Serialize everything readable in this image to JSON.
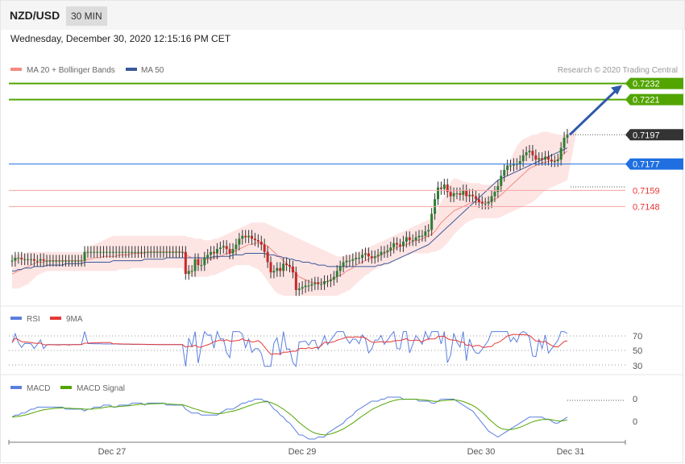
{
  "header": {
    "symbol": "NZD/USD",
    "timeframe": "30 MIN"
  },
  "datetime": "Wednesday, December 30, 2020 12:15:16 PM CET",
  "copyright": "Research © 2020 Trading Central",
  "colors": {
    "green": "#52a500",
    "blue": "#1f6fe0",
    "red": "#e33",
    "up": "#2e7d32",
    "down": "#c62828",
    "arrow": "#2f5aa8"
  },
  "chart_data": [
    {
      "type": "candlestick",
      "legend": [
        {
          "name": "MA 20 + Bollinger Bands",
          "color": "#f28b82"
        },
        {
          "name": "MA 50",
          "color": "#3b5998"
        }
      ],
      "levels": [
        {
          "value": 0.7232,
          "label": "0.7232",
          "style": "green-badge"
        },
        {
          "value": 0.7221,
          "label": "0.7221",
          "style": "green-badge"
        },
        {
          "value": 0.7197,
          "label": "0.7197",
          "style": "dark-badge"
        },
        {
          "value": 0.7177,
          "label": "0.7177",
          "style": "blue-badge"
        },
        {
          "value": 0.7159,
          "label": "0.7159",
          "style": "red-text"
        },
        {
          "value": 0.7148,
          "label": "0.7148",
          "style": "red-text"
        }
      ],
      "price_series": [
        0.7111,
        0.7113,
        0.7113,
        0.7112,
        0.7112,
        0.7112,
        0.7112,
        0.7111,
        0.7111,
        0.7112,
        0.7111,
        0.7111,
        0.7111,
        0.7111,
        0.7111,
        0.7111,
        0.7111,
        0.7111,
        0.7111,
        0.7111,
        0.7111,
        0.7111,
        0.7111,
        0.7117,
        0.7117,
        0.7117,
        0.7117,
        0.7117,
        0.7117,
        0.7117,
        0.7117,
        0.7117,
        0.7117,
        0.7117,
        0.7117,
        0.7117,
        0.7117,
        0.7117,
        0.7117,
        0.7117,
        0.7117,
        0.7117,
        0.7117,
        0.7117,
        0.7117,
        0.7117,
        0.7117,
        0.7117,
        0.7117,
        0.7117,
        0.7117,
        0.7117,
        0.7117,
        0.7117,
        0.7117,
        0.7102,
        0.7104,
        0.7104,
        0.7112,
        0.7108,
        0.7108,
        0.7113,
        0.7115,
        0.7117,
        0.7116,
        0.7119,
        0.712,
        0.7121,
        0.7119,
        0.7116,
        0.7119,
        0.7122,
        0.7126,
        0.7128,
        0.7127,
        0.7128,
        0.7126,
        0.7125,
        0.7124,
        0.7122,
        0.7117,
        0.711,
        0.7103,
        0.7104,
        0.7106,
        0.7104,
        0.7109,
        0.7108,
        0.7107,
        0.7103,
        0.7091,
        0.7092,
        0.7093,
        0.7094,
        0.7094,
        0.7095,
        0.7096,
        0.7095,
        0.7095,
        0.7097,
        0.7097,
        0.7098,
        0.71,
        0.7104,
        0.7107,
        0.711,
        0.7111,
        0.7111,
        0.7112,
        0.7113,
        0.7113,
        0.7115,
        0.7116,
        0.7114,
        0.7113,
        0.7114,
        0.7115,
        0.7117,
        0.7117,
        0.7118,
        0.712,
        0.7123,
        0.7122,
        0.7121,
        0.7124,
        0.7127,
        0.7125,
        0.7125,
        0.7127,
        0.7128,
        0.7128,
        0.7131,
        0.7132,
        0.7143,
        0.7153,
        0.7161,
        0.716,
        0.7163,
        0.7158,
        0.7155,
        0.7157,
        0.7157,
        0.7156,
        0.7159,
        0.7155,
        0.7156,
        0.7155,
        0.7153,
        0.7151,
        0.715,
        0.715,
        0.7151,
        0.7155,
        0.7158,
        0.7162,
        0.7169,
        0.7173,
        0.7176,
        0.7176,
        0.7177,
        0.7177,
        0.7179,
        0.7183,
        0.7185,
        0.7186,
        0.7183,
        0.718,
        0.7181,
        0.718,
        0.7182,
        0.718,
        0.7179,
        0.7179,
        0.718,
        0.7188,
        0.7195,
        0.7197
      ],
      "ma20": [
        0.7102,
        0.7103,
        0.7104,
        0.7105,
        0.7106,
        0.7107,
        0.7108,
        0.7109,
        0.711,
        0.711,
        0.711,
        0.7111,
        0.7111,
        0.7111,
        0.7111,
        0.7111,
        0.7111,
        0.7111,
        0.7111,
        0.7111,
        0.7111,
        0.7111,
        0.7111,
        0.7111,
        0.7112,
        0.7112,
        0.7113,
        0.7113,
        0.7113,
        0.7114,
        0.7114,
        0.7114,
        0.7114,
        0.7114,
        0.7115,
        0.7115,
        0.7115,
        0.7115,
        0.7116,
        0.7116,
        0.7116,
        0.7116,
        0.7116,
        0.7117,
        0.7117,
        0.7117,
        0.7117,
        0.7117,
        0.7117,
        0.7117,
        0.7117,
        0.7117,
        0.7117,
        0.7117,
        0.7117,
        0.7115,
        0.7114,
        0.7113,
        0.7113,
        0.7113,
        0.7112,
        0.7112,
        0.7112,
        0.7112,
        0.7113,
        0.7113,
        0.7114,
        0.7115,
        0.7116,
        0.7116,
        0.7117,
        0.7118,
        0.7119,
        0.712,
        0.7121,
        0.7122,
        0.7122,
        0.7123,
        0.7123,
        0.7123,
        0.7122,
        0.7121,
        0.7119,
        0.7117,
        0.7115,
        0.7113,
        0.7111,
        0.7109,
        0.7107,
        0.7105,
        0.7102,
        0.71,
        0.7099,
        0.7098,
        0.7097,
        0.7096,
        0.7096,
        0.7096,
        0.7096,
        0.7096,
        0.7097,
        0.7098,
        0.7099,
        0.71,
        0.7101,
        0.7102,
        0.7104,
        0.7105,
        0.7106,
        0.7108,
        0.7109,
        0.711,
        0.7111,
        0.7112,
        0.7113,
        0.7113,
        0.7114,
        0.7115,
        0.7116,
        0.7117,
        0.7118,
        0.7119,
        0.712,
        0.7121,
        0.7121,
        0.7122,
        0.7123,
        0.7124,
        0.7125,
        0.7125,
        0.7126,
        0.7127,
        0.7128,
        0.7129,
        0.7131,
        0.7134,
        0.7137,
        0.7139,
        0.7141,
        0.7143,
        0.7145,
        0.7146,
        0.7147,
        0.7148,
        0.7149,
        0.715,
        0.7151,
        0.7151,
        0.7151,
        0.7151,
        0.7151,
        0.7151,
        0.7152,
        0.7153,
        0.7154,
        0.7156,
        0.7158,
        0.716,
        0.7162,
        0.7164,
        0.7166,
        0.7168,
        0.717,
        0.7172,
        0.7174,
        0.7175,
        0.7176,
        0.7177,
        0.7178,
        0.7178,
        0.7179,
        0.7179,
        0.7179,
        0.718,
        0.7182,
        0.7184,
        0.7186
      ],
      "ma50": [
        0.7104,
        0.7104,
        0.7105,
        0.7105,
        0.7106,
        0.7106,
        0.7106,
        0.7107,
        0.7107,
        0.7107,
        0.7107,
        0.7108,
        0.7108,
        0.7108,
        0.7108,
        0.7108,
        0.7108,
        0.7109,
        0.7109,
        0.7109,
        0.7109,
        0.7109,
        0.7109,
        0.711,
        0.711,
        0.711,
        0.711,
        0.711,
        0.711,
        0.711,
        0.711,
        0.711,
        0.7111,
        0.7111,
        0.7111,
        0.7111,
        0.7111,
        0.7111,
        0.7111,
        0.7111,
        0.7111,
        0.7111,
        0.7112,
        0.7112,
        0.7112,
        0.7112,
        0.7112,
        0.7112,
        0.7112,
        0.7113,
        0.7113,
        0.7113,
        0.7113,
        0.7113,
        0.7113,
        0.7113,
        0.7113,
        0.7113,
        0.7113,
        0.7113,
        0.7113,
        0.7113,
        0.7113,
        0.7113,
        0.7114,
        0.7114,
        0.7114,
        0.7114,
        0.7114,
        0.7114,
        0.7115,
        0.7115,
        0.7115,
        0.7115,
        0.7116,
        0.7116,
        0.7116,
        0.7116,
        0.7116,
        0.7116,
        0.7116,
        0.7115,
        0.7115,
        0.7115,
        0.7114,
        0.7114,
        0.7113,
        0.7113,
        0.7112,
        0.7112,
        0.7111,
        0.7111,
        0.711,
        0.711,
        0.711,
        0.7109,
        0.7109,
        0.7108,
        0.7108,
        0.7108,
        0.7107,
        0.7107,
        0.7107,
        0.7107,
        0.7107,
        0.7107,
        0.7107,
        0.7107,
        0.7107,
        0.7107,
        0.7107,
        0.7107,
        0.7107,
        0.7107,
        0.7107,
        0.7107,
        0.7108,
        0.7108,
        0.7109,
        0.7109,
        0.711,
        0.7111,
        0.7112,
        0.7113,
        0.7114,
        0.7115,
        0.7116,
        0.7117,
        0.7118,
        0.7119,
        0.712,
        0.7121,
        0.7122,
        0.7124,
        0.7126,
        0.7128,
        0.713,
        0.7132,
        0.7134,
        0.7136,
        0.7138,
        0.714,
        0.7142,
        0.7144,
        0.7146,
        0.7148,
        0.715,
        0.7152,
        0.7154,
        0.7156,
        0.7158,
        0.716,
        0.7162,
        0.7164,
        0.7166,
        0.7167,
        0.7168,
        0.7169,
        0.717,
        0.7171,
        0.7172,
        0.7173,
        0.7174,
        0.7175,
        0.7176,
        0.7177,
        0.7178,
        0.7179,
        0.718,
        0.7181,
        0.7182,
        0.7183,
        0.7184,
        0.7185,
        0.7186,
        0.7187,
        0.7188
      ],
      "bb_upper": [
        0.7114,
        0.7115,
        0.7115,
        0.7116,
        0.7116,
        0.7117,
        0.7117,
        0.7117,
        0.7117,
        0.7117,
        0.7117,
        0.7117,
        0.7117,
        0.7117,
        0.7117,
        0.7117,
        0.7117,
        0.7117,
        0.7117,
        0.7117,
        0.7117,
        0.7117,
        0.7117,
        0.7117,
        0.712,
        0.7121,
        0.7122,
        0.7123,
        0.7124,
        0.7125,
        0.7126,
        0.7127,
        0.7128,
        0.7128,
        0.7128,
        0.7128,
        0.7128,
        0.7128,
        0.7128,
        0.7128,
        0.7128,
        0.7128,
        0.7128,
        0.7128,
        0.7128,
        0.7128,
        0.7128,
        0.7128,
        0.7128,
        0.7128,
        0.7128,
        0.7128,
        0.7128,
        0.7128,
        0.7128,
        0.7128,
        0.7127,
        0.7127,
        0.7126,
        0.7126,
        0.7126,
        0.7125,
        0.7125,
        0.7125,
        0.7126,
        0.7126,
        0.7127,
        0.7128,
        0.7129,
        0.713,
        0.7131,
        0.7132,
        0.7133,
        0.7134,
        0.7135,
        0.7136,
        0.7137,
        0.7137,
        0.7137,
        0.7137,
        0.7137,
        0.7136,
        0.7135,
        0.7134,
        0.7133,
        0.7132,
        0.7131,
        0.713,
        0.7129,
        0.7128,
        0.7127,
        0.7126,
        0.7125,
        0.7124,
        0.7123,
        0.7122,
        0.7121,
        0.712,
        0.7119,
        0.7118,
        0.7117,
        0.7116,
        0.7115,
        0.7114,
        0.7114,
        0.7114,
        0.7115,
        0.7115,
        0.7116,
        0.7116,
        0.7117,
        0.7118,
        0.7119,
        0.712,
        0.7121,
        0.7122,
        0.7123,
        0.7124,
        0.7125,
        0.7126,
        0.7127,
        0.7128,
        0.7129,
        0.713,
        0.7131,
        0.7132,
        0.7133,
        0.7134,
        0.7135,
        0.7136,
        0.7137,
        0.7138,
        0.7139,
        0.714,
        0.7143,
        0.7147,
        0.7151,
        0.7155,
        0.716,
        0.7165,
        0.7167,
        0.7167,
        0.7166,
        0.7165,
        0.7165,
        0.7164,
        0.7164,
        0.7164,
        0.7164,
        0.7163,
        0.7163,
        0.7163,
        0.7163,
        0.7164,
        0.7165,
        0.7167,
        0.717,
        0.7175,
        0.718,
        0.7185,
        0.7189,
        0.7192,
        0.7194,
        0.7195,
        0.7196,
        0.7197,
        0.7197,
        0.7198,
        0.7199,
        0.7199,
        0.7199,
        0.7198,
        0.7198,
        0.7197,
        0.7197,
        0.7197,
        0.7198,
        0.7199,
        0.72,
        0.72
      ],
      "bb_lower": [
        0.7092,
        0.7092,
        0.7092,
        0.7093,
        0.7094,
        0.7095,
        0.7097,
        0.7099,
        0.7101,
        0.7102,
        0.7103,
        0.7104,
        0.7104,
        0.7104,
        0.7104,
        0.7104,
        0.7104,
        0.7104,
        0.7104,
        0.7104,
        0.7104,
        0.7104,
        0.7104,
        0.7104,
        0.7104,
        0.7104,
        0.7104,
        0.7104,
        0.7104,
        0.7104,
        0.7104,
        0.7104,
        0.7104,
        0.7104,
        0.7105,
        0.7105,
        0.7105,
        0.7105,
        0.7106,
        0.7106,
        0.7106,
        0.7106,
        0.7106,
        0.7106,
        0.7106,
        0.7106,
        0.7106,
        0.7106,
        0.7106,
        0.7106,
        0.7106,
        0.7106,
        0.7106,
        0.7106,
        0.7106,
        0.7102,
        0.7101,
        0.71,
        0.71,
        0.71,
        0.71,
        0.71,
        0.71,
        0.7101,
        0.7101,
        0.7102,
        0.7103,
        0.7104,
        0.7105,
        0.7106,
        0.7107,
        0.7108,
        0.7108,
        0.7108,
        0.7108,
        0.7108,
        0.7107,
        0.7106,
        0.7105,
        0.7103,
        0.71,
        0.7097,
        0.7094,
        0.7091,
        0.7089,
        0.7088,
        0.7087,
        0.7087,
        0.7087,
        0.7087,
        0.7087,
        0.7087,
        0.7087,
        0.7087,
        0.7087,
        0.7087,
        0.7087,
        0.7087,
        0.7087,
        0.7087,
        0.7087,
        0.7087,
        0.7087,
        0.7087,
        0.7088,
        0.7089,
        0.709,
        0.7091,
        0.7093,
        0.7095,
        0.7097,
        0.7099,
        0.7101,
        0.7102,
        0.7104,
        0.7105,
        0.7106,
        0.7107,
        0.7108,
        0.7109,
        0.711,
        0.7111,
        0.7112,
        0.7113,
        0.7114,
        0.7115,
        0.7115,
        0.7116,
        0.7116,
        0.7116,
        0.7116,
        0.7116,
        0.7116,
        0.7117,
        0.7117,
        0.7118,
        0.7119,
        0.7121,
        0.7123,
        0.7126,
        0.7129,
        0.7131,
        0.7133,
        0.7135,
        0.7137,
        0.7138,
        0.7139,
        0.714,
        0.714,
        0.714,
        0.714,
        0.714,
        0.714,
        0.714,
        0.714,
        0.7141,
        0.7142,
        0.7143,
        0.7144,
        0.7145,
        0.7146,
        0.7147,
        0.7148,
        0.7149,
        0.715,
        0.7151,
        0.7153,
        0.7155,
        0.7157,
        0.7159,
        0.716,
        0.7161,
        0.7162,
        0.7163,
        0.7164,
        0.7165,
        0.7166,
        0.7168,
        0.717,
        0.7172,
        0.7174
      ],
      "last_price": 0.7197,
      "ylim": [
        0.708,
        0.7245
      ]
    },
    {
      "type": "line",
      "legend": [
        {
          "name": "RSI",
          "color": "#5b7fe0"
        },
        {
          "name": "9MA",
          "color": "#e53935"
        }
      ],
      "y_ticks": [
        "70",
        "50",
        "30"
      ],
      "ylim": [
        20,
        80
      ]
    },
    {
      "type": "line",
      "legend": [
        {
          "name": "MACD",
          "color": "#5b7fe0"
        },
        {
          "name": "MACD Signal",
          "color": "#52a500"
        }
      ],
      "y_ticks": [
        "0",
        "0"
      ]
    }
  ],
  "x_axis": {
    "labels": [
      "Dec 27",
      "Dec 29",
      "Dec 30",
      "Dec 31"
    ]
  }
}
